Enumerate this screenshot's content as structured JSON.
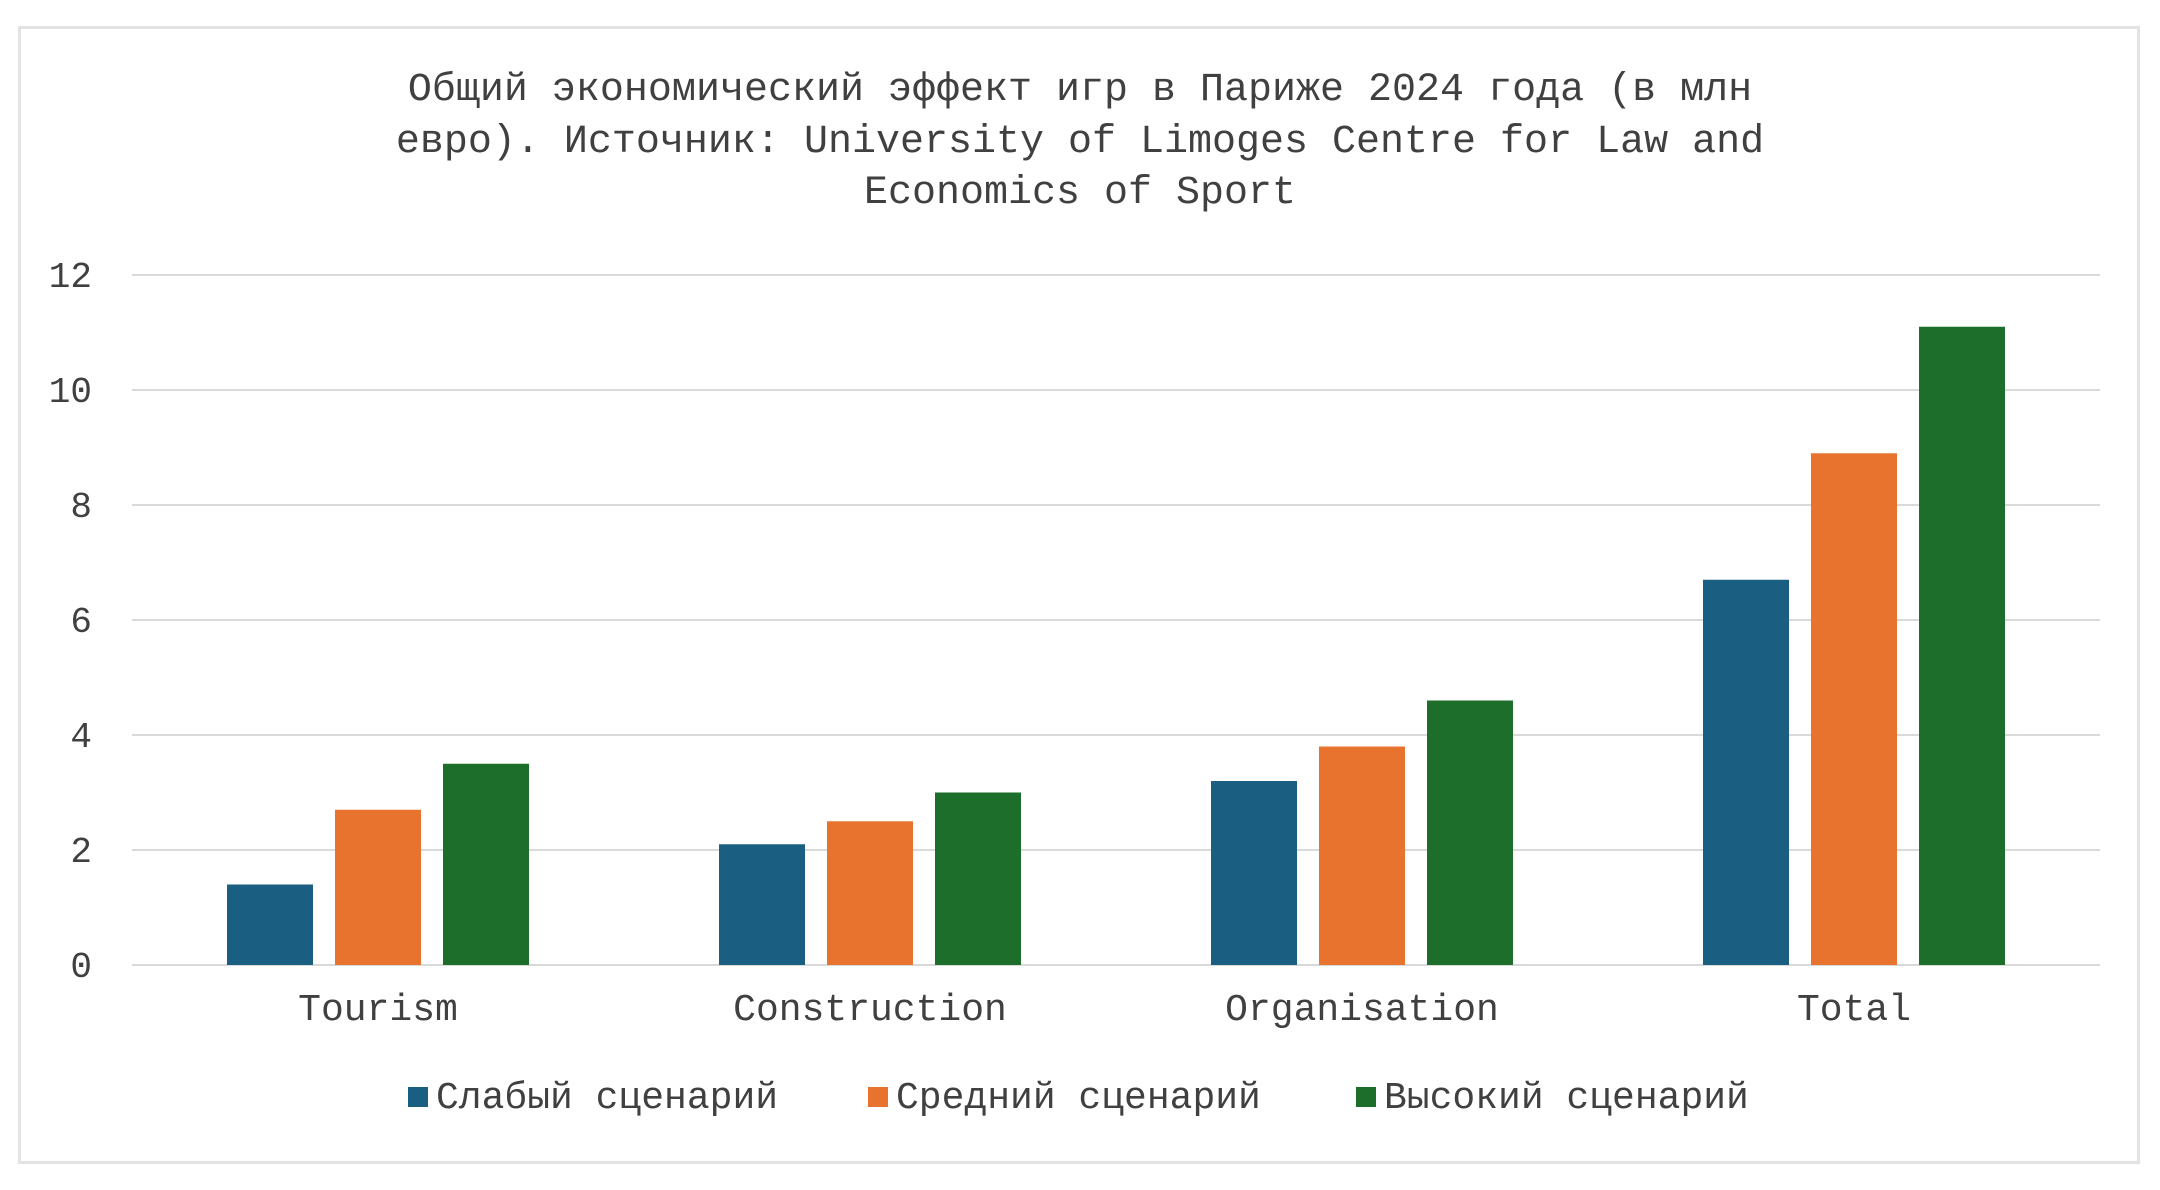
{
  "chart_data": {
    "type": "bar",
    "title_lines": [
      "Общий экономический эффект игр в Париже 2024 года (в млн",
      "евро). Источник: University of Limoges Centre for Law and",
      "Economics of Sport"
    ],
    "categories": [
      "Tourism",
      "Construction",
      "Organisation",
      "Total"
    ],
    "series": [
      {
        "name": "Слабый сценарий",
        "color": "#1a5f82",
        "values": [
          1.4,
          2.1,
          3.2,
          6.7
        ]
      },
      {
        "name": "Средний сценарий",
        "color": "#e8732f",
        "values": [
          2.7,
          2.5,
          3.8,
          8.9
        ]
      },
      {
        "name": "Высокий сценарий",
        "color": "#1e6e2b",
        "values": [
          3.5,
          3.0,
          4.6,
          11.1
        ]
      }
    ],
    "ylim": [
      0,
      12
    ],
    "yticks": [
      "0",
      "2",
      "4",
      "6",
      "8",
      "10",
      "12"
    ],
    "grid": true,
    "legend_position": "bottom",
    "gridline_color": "#d9d9d9"
  }
}
